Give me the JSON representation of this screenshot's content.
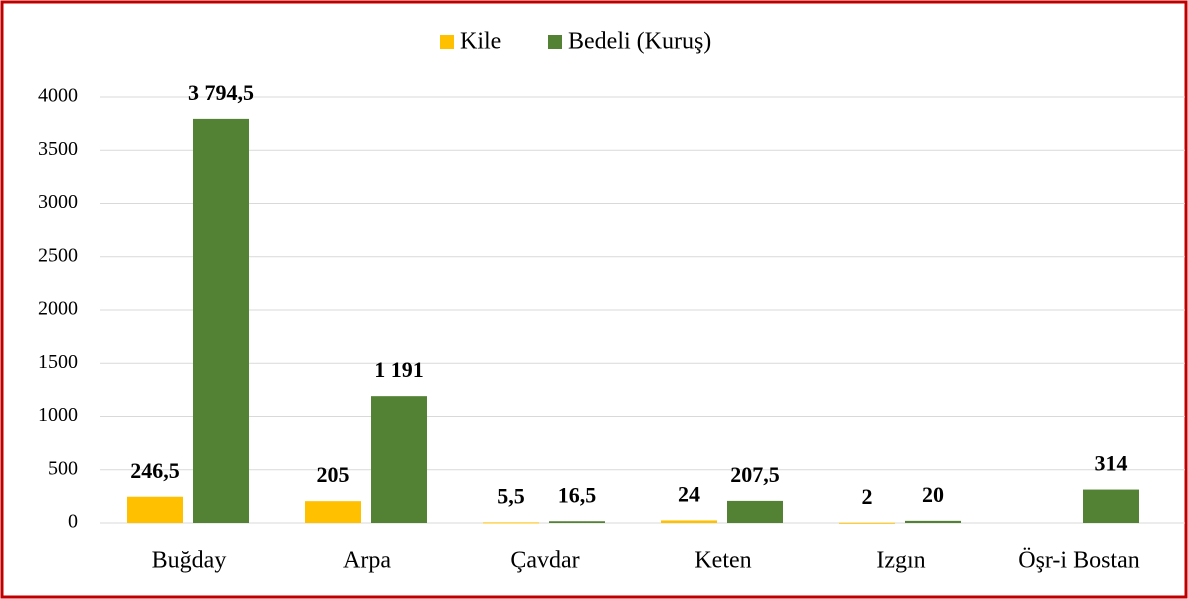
{
  "chart_data": {
    "type": "bar",
    "categories": [
      "Buğday",
      "Arpa",
      "Çavdar",
      "Keten",
      "Izgın",
      "Öşr-i Bostan"
    ],
    "series": [
      {
        "name": "Kile",
        "color": "#ffc000",
        "values": [
          246.5,
          205,
          5.5,
          24,
          2,
          null
        ],
        "value_labels": [
          "246,5",
          "205",
          "5,5",
          "24",
          "2",
          null
        ]
      },
      {
        "name": "Bedeli (Kuruş)",
        "color": "#548235",
        "values": [
          3794.5,
          1191,
          16.5,
          207.5,
          20,
          314
        ],
        "value_labels": [
          "3 794,5",
          "1 191",
          "16,5",
          "207,5",
          "20",
          "314"
        ]
      }
    ],
    "ylim": [
      0,
      4000
    ],
    "yticks": [
      0,
      500,
      1000,
      1500,
      2000,
      2500,
      3000,
      3500,
      4000
    ],
    "grid": true,
    "legend": "top"
  }
}
